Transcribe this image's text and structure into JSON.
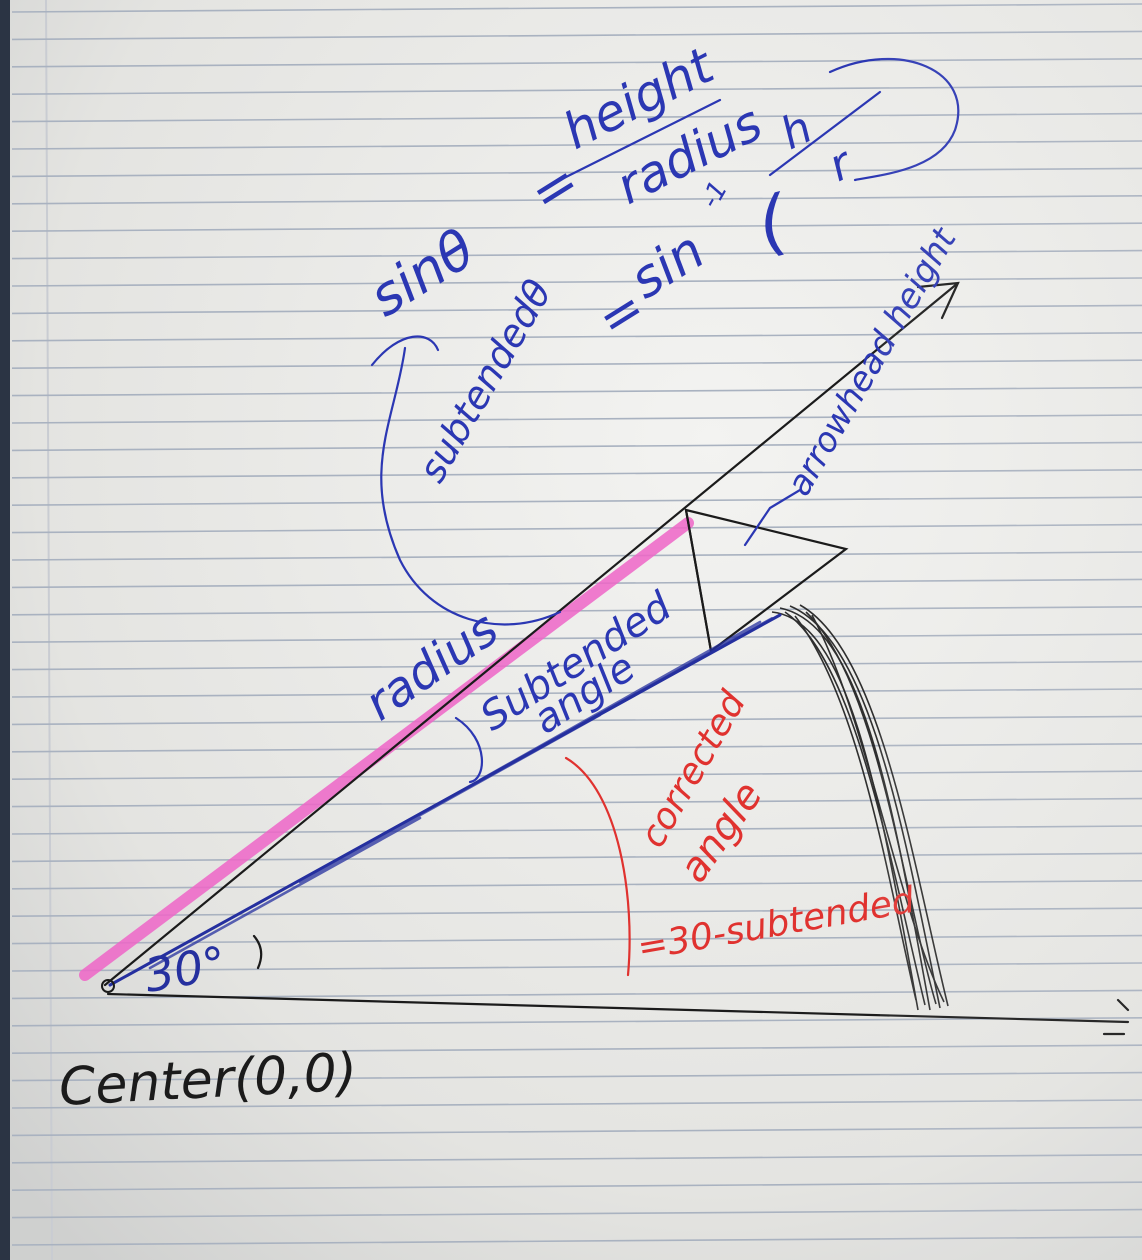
{
  "photo": {
    "colors": {
      "paper": "#e9e9e6",
      "ruled_line": "#a9b2c0",
      "margin_line": "#c9ccd2",
      "ink_black": "#1b1b1b",
      "ink_blue": "#2b37b3",
      "ink_red": "#e0322f",
      "highlighter_pink": "#ef66c8"
    },
    "formulas": {
      "sin_lhs": "sinθ",
      "equals": "=",
      "sin_numerator": "height",
      "sin_denominator": "radius",
      "subtended_lhs": "subtendedθ",
      "arcsin": "sin",
      "inverse": "-1",
      "paren_open": "(",
      "h": "h",
      "r": "r"
    },
    "labels": {
      "arrowhead_height": "arrowhead height",
      "radius": "radius",
      "subtended": "Subtended",
      "angle": "angle",
      "corrected": "corrected",
      "corrected_angle": "angle",
      "corrected_formula": "=30-subtended",
      "thirty_degrees": "30°",
      "center": "Center(0,0)"
    }
  }
}
